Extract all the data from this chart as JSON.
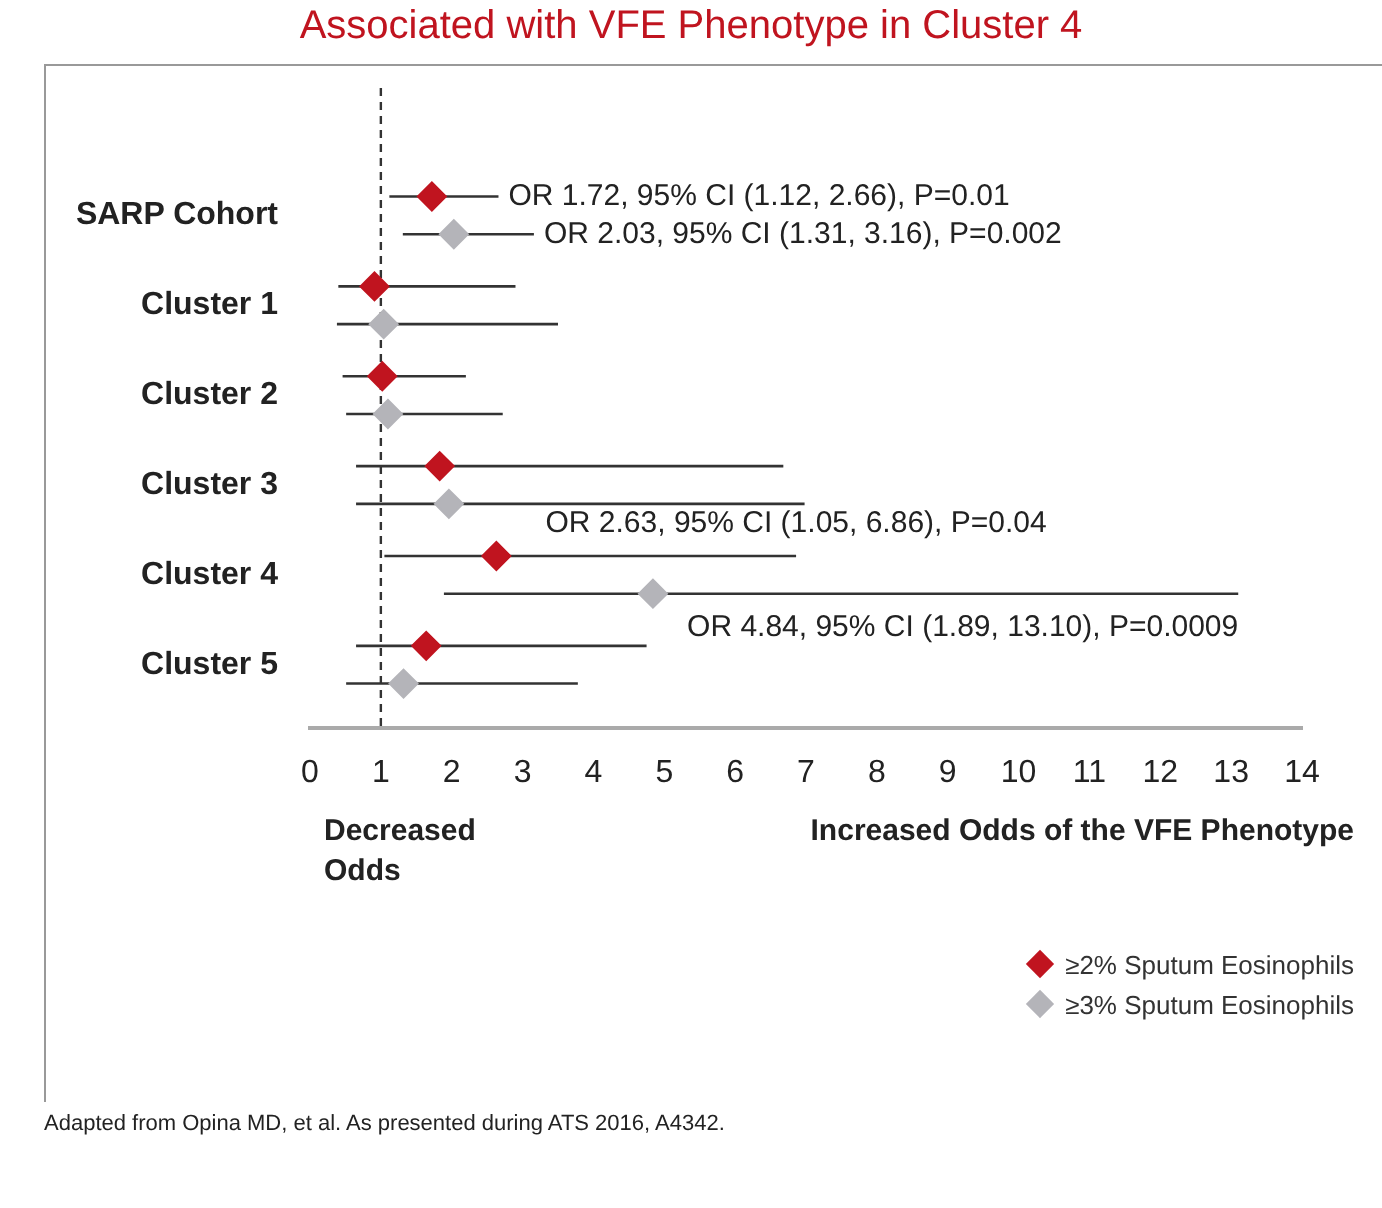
{
  "chart_data": {
    "type": "scatter",
    "title": "Associated with VFE Phenotype in Cluster 4",
    "orientation": "horizontal",
    "marker": "diamond",
    "categories": [
      "SARP Cohort",
      "Cluster 1",
      "Cluster 2",
      "Cluster 3",
      "Cluster 4",
      "Cluster 5"
    ],
    "series": [
      {
        "name": "≥2% Sputum Eosinophils",
        "color": "#c0141f",
        "values": [
          1.72,
          0.91,
          1.02,
          1.83,
          2.63,
          1.64
        ],
        "errors": [
          [
            1.12,
            2.66
          ],
          [
            0.4,
            2.9
          ],
          [
            0.46,
            2.2
          ],
          [
            0.65,
            6.68
          ],
          [
            1.05,
            6.86
          ],
          [
            0.65,
            4.75
          ]
        ]
      },
      {
        "name": "≥3% Sputum Eosinophils",
        "color": "#b4b4b9",
        "values": [
          2.03,
          1.04,
          1.1,
          1.96,
          4.84,
          1.32
        ],
        "errors": [
          [
            1.31,
            3.16
          ],
          [
            0.38,
            3.5
          ],
          [
            0.51,
            2.72
          ],
          [
            0.65,
            6.98
          ],
          [
            1.89,
            13.1
          ],
          [
            0.51,
            3.78
          ]
        ]
      }
    ],
    "xlim": [
      0,
      14
    ],
    "xticks": [
      0,
      1,
      2,
      3,
      4,
      5,
      6,
      7,
      8,
      9,
      10,
      11,
      12,
      13,
      14
    ],
    "ref_lines": [
      {
        "axis": "x",
        "value": 1,
        "line_style": "dashed",
        "color": "#333333"
      }
    ],
    "legend": "bottom right",
    "annotations": [
      "Decreased Odds",
      "Increased Odds of the VFE Phenotype",
      "Adapted from Opina MD, et al. As presented during ATS 2016, A4342.",
      "OR 1.72, 95% CI (1.12, 2.66), P=0.01",
      "OR 2.03, 95% CI (1.31, 3.16), P=0.002",
      "OR 2.63, 95% CI (1.05, 6.86), P=0.04",
      "OR 4.84, 95% CI (1.89, 13.10), P=0.0009"
    ]
  }
}
